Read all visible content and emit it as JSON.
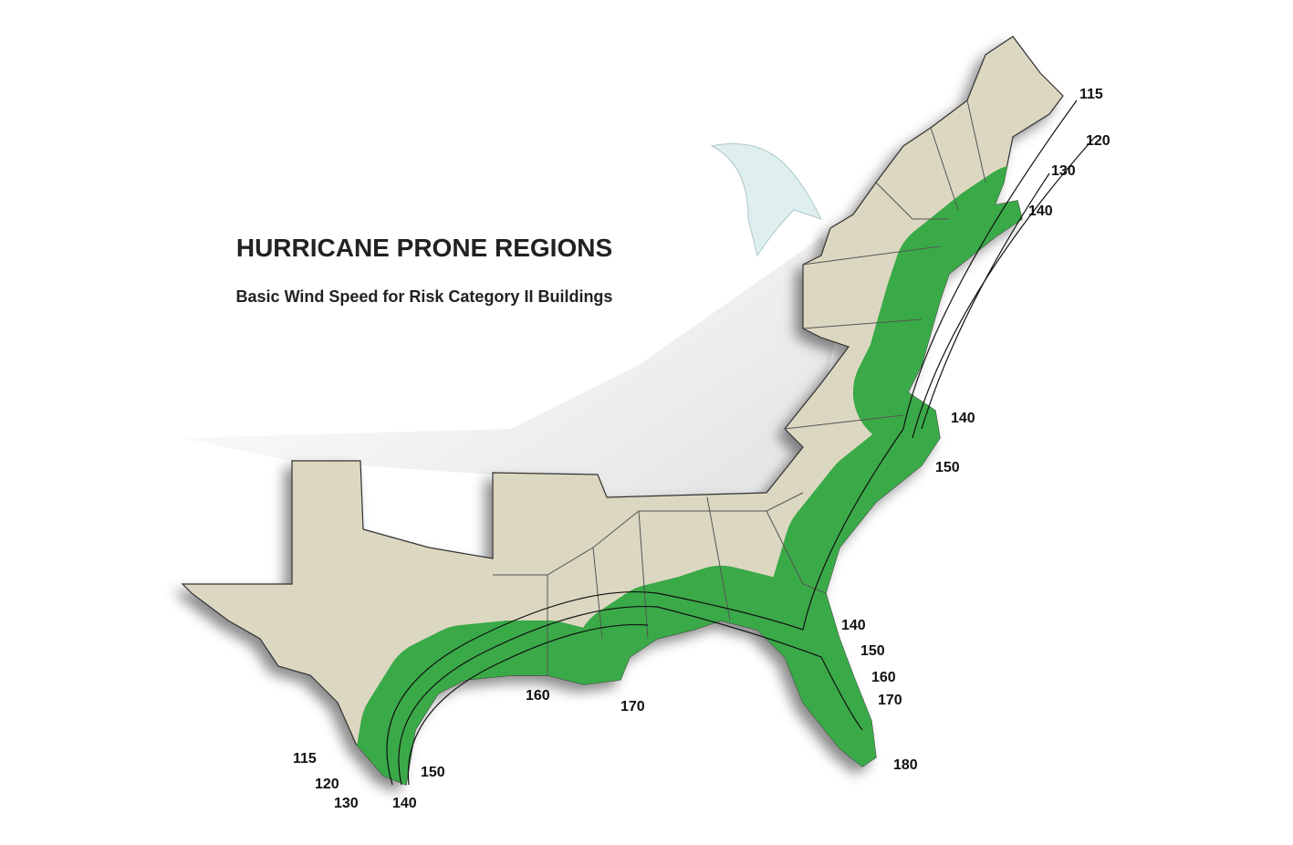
{
  "title": "HURRICANE PRONE REGIONS",
  "subtitle": "Basic Wind Speed for Risk Category II Buildings",
  "labels": [
    115,
    120,
    130,
    140,
    140,
    150,
    140,
    150,
    160,
    170,
    180,
    160,
    170,
    115,
    120,
    130,
    140,
    150
  ]
}
